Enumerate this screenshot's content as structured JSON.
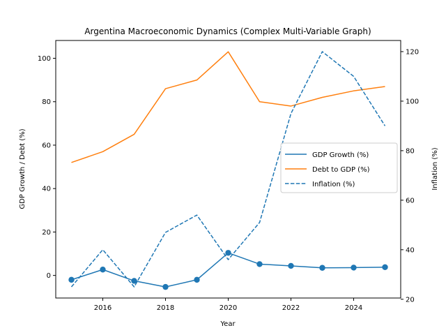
{
  "chart_data": {
    "type": "line",
    "title": "Argentina Macroeconomic Dynamics (Complex Multi-Variable Graph)",
    "xlabel": "Year",
    "ylabel": "GDP Growth / Debt (%)",
    "y2label": "Inflation (%)",
    "xlim": [
      2014.5,
      2025.5
    ],
    "ylim": [
      -10.4,
      108.2
    ],
    "y2lim": [
      20.5,
      124.5
    ],
    "x_ticks": [
      2016,
      2018,
      2020,
      2022,
      2024
    ],
    "y_ticks": [
      0,
      20,
      40,
      60,
      80,
      100
    ],
    "y2_ticks": [
      20,
      40,
      60,
      80,
      100,
      120
    ],
    "x": [
      2015,
      2016,
      2017,
      2018,
      2019,
      2020,
      2021,
      2022,
      2023,
      2024,
      2025
    ],
    "series": [
      {
        "name": "GDP Growth (%)",
        "axis": "left",
        "style": "solid",
        "markers": true,
        "color": "#1f77b4",
        "values": [
          -2,
          2.7,
          -2.5,
          -5.3,
          -2,
          10.4,
          5.2,
          4.4,
          3.5,
          3.6,
          3.8
        ]
      },
      {
        "name": "Debt to GDP (%)",
        "axis": "left",
        "style": "solid",
        "markers": false,
        "color": "#ff7f0e",
        "values": [
          52,
          57,
          65,
          86,
          90,
          103,
          80,
          78,
          82,
          85,
          87
        ]
      },
      {
        "name": "Inflation (%)",
        "axis": "right",
        "style": "dashed",
        "markers": false,
        "color": "#1f77b4",
        "values": [
          25,
          40,
          25,
          47,
          54,
          36,
          51,
          95,
          120,
          110,
          90
        ]
      }
    ],
    "legend_position": "center-right",
    "grid": false
  }
}
